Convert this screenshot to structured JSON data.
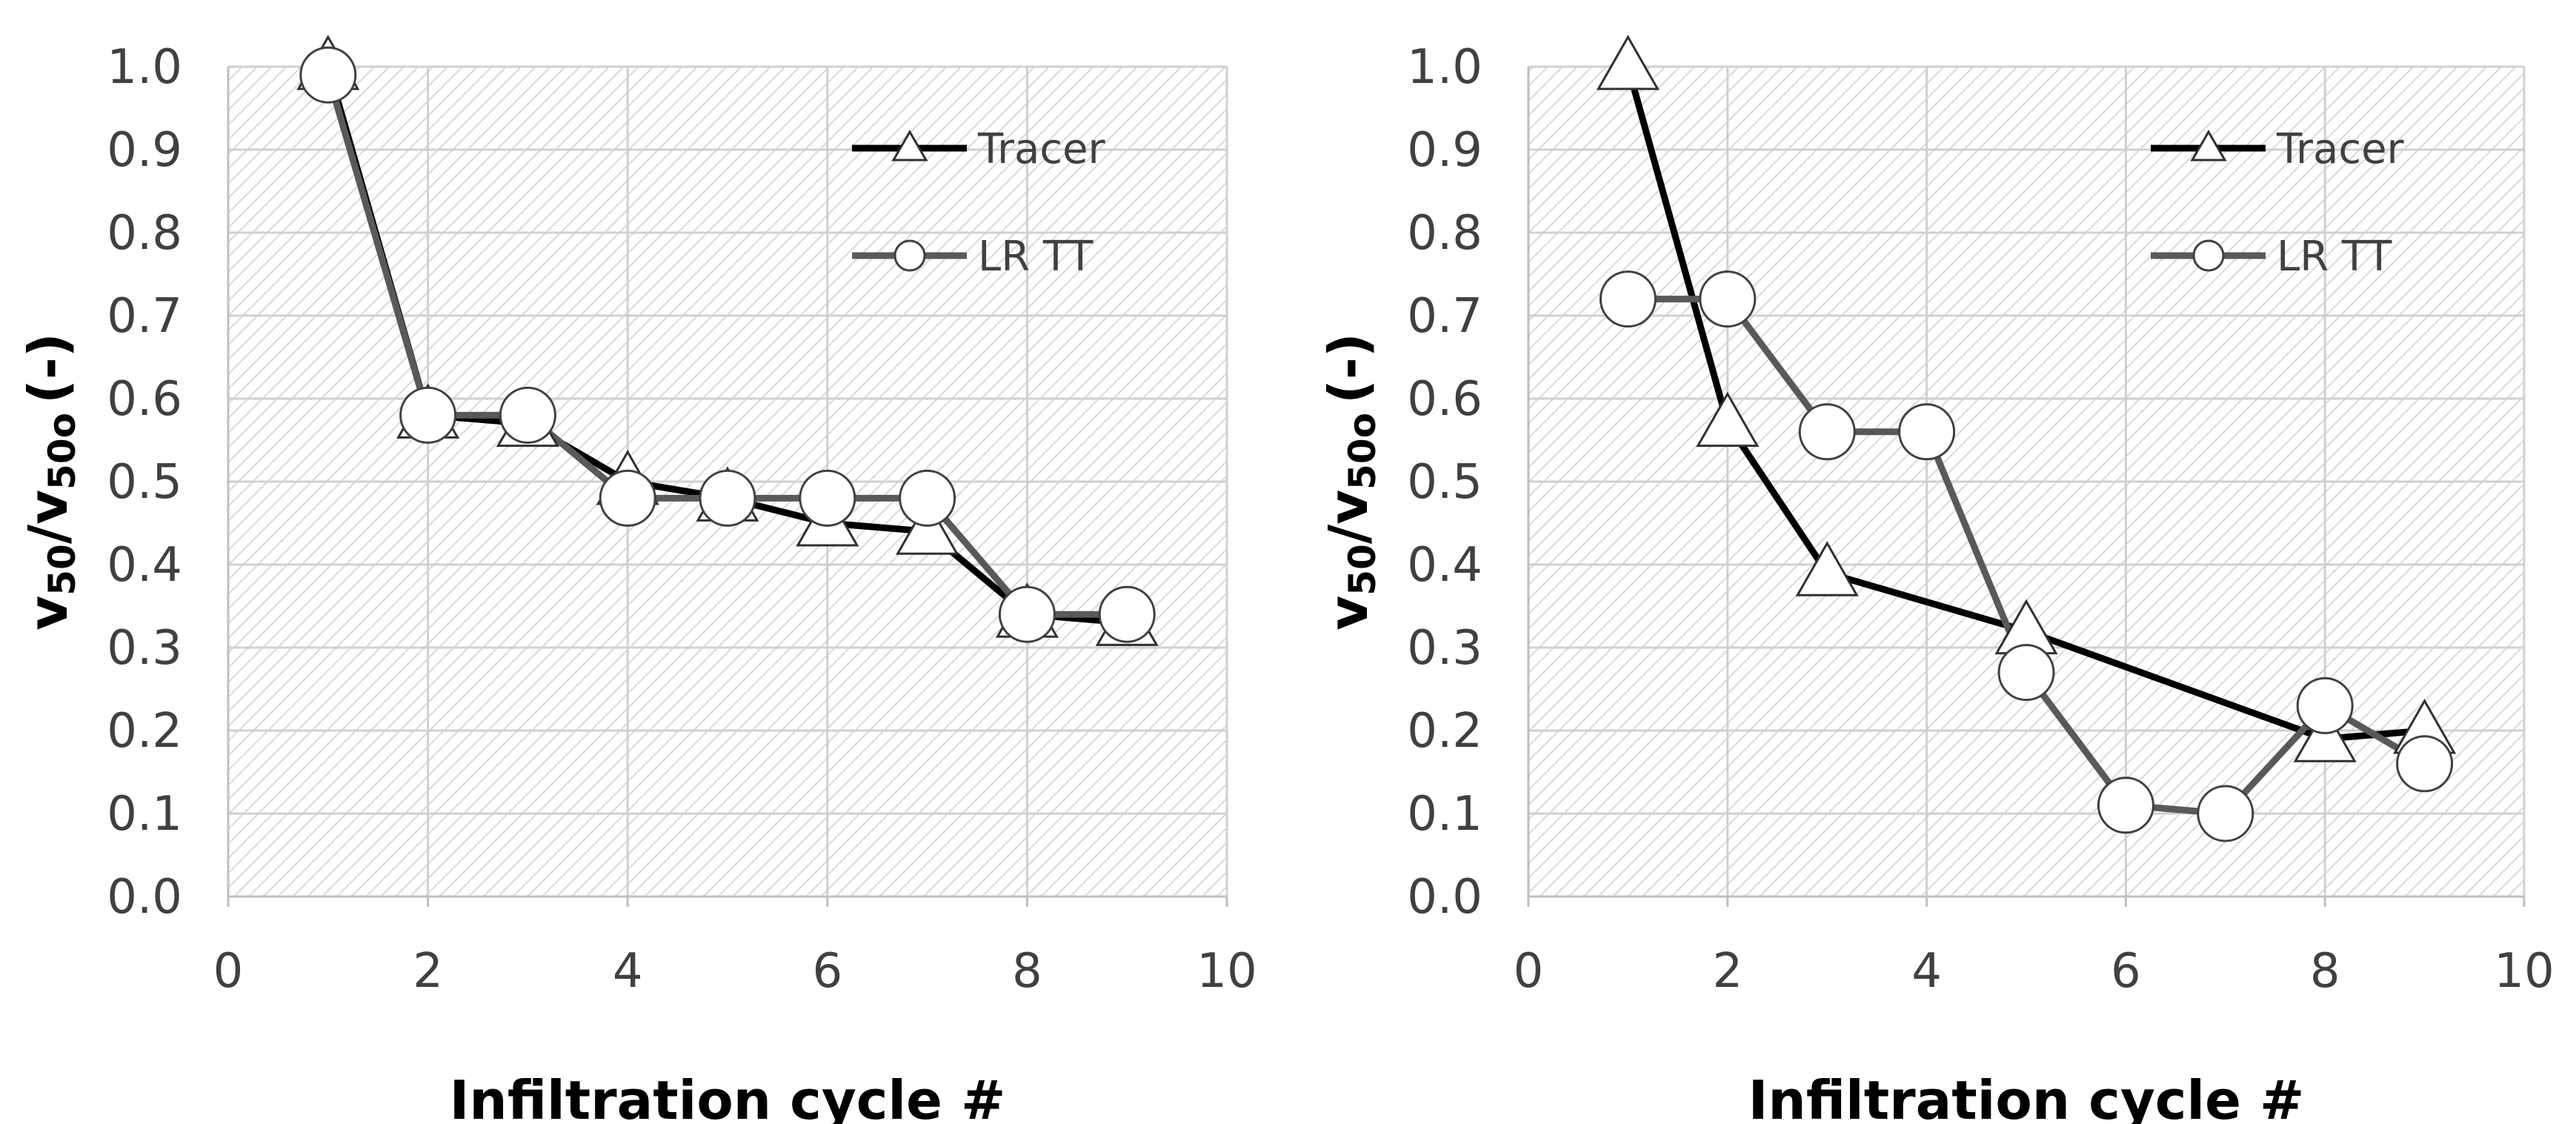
{
  "chart_data": [
    {
      "type": "line",
      "title": "",
      "xlabel": "Infiltration cycle #",
      "ylabel": {
        "v": "v",
        "sub1": "50",
        "slash": "/v",
        "sub2": "50o",
        "unit": "(-)"
      },
      "xlim": [
        0,
        10
      ],
      "ylim": [
        0,
        1
      ],
      "xticks": [
        "0",
        "2",
        "4",
        "6",
        "8",
        "10"
      ],
      "yticks": [
        "0.0",
        "0.1",
        "0.2",
        "0.3",
        "0.4",
        "0.5",
        "0.6",
        "0.7",
        "0.8",
        "0.9",
        "1.0"
      ],
      "legend_position": "top-right",
      "grid": true,
      "series": [
        {
          "name": "Tracer",
          "marker": "triangle",
          "color": "#000000",
          "x": [
            1,
            2,
            3,
            4,
            5,
            6,
            7,
            8,
            9
          ],
          "y": [
            1.0,
            0.58,
            0.57,
            0.5,
            0.48,
            0.45,
            0.44,
            0.34,
            0.33
          ]
        },
        {
          "name": "LR TT",
          "marker": "circle",
          "color": "#595959",
          "x": [
            1,
            2,
            3,
            4,
            5,
            6,
            7,
            8,
            9
          ],
          "y": [
            0.99,
            0.58,
            0.58,
            0.48,
            0.48,
            0.48,
            0.48,
            0.34,
            0.34
          ]
        }
      ]
    },
    {
      "type": "line",
      "title": "",
      "xlabel": "Infiltration cycle #",
      "ylabel": {
        "v": "v",
        "sub1": "50",
        "slash": "/v",
        "sub2": "50o",
        "unit": "(-)"
      },
      "xlim": [
        0,
        10
      ],
      "ylim": [
        0,
        1
      ],
      "xticks": [
        "0",
        "2",
        "4",
        "6",
        "8",
        "10"
      ],
      "yticks": [
        "0.0",
        "0.1",
        "0.2",
        "0.3",
        "0.4",
        "0.5",
        "0.6",
        "0.7",
        "0.8",
        "0.9",
        "1.0"
      ],
      "legend_position": "top-right",
      "grid": true,
      "series": [
        {
          "name": "Tracer",
          "marker": "triangle",
          "color": "#000000",
          "x": [
            1,
            2,
            3,
            5,
            8,
            9
          ],
          "y": [
            1.0,
            0.57,
            0.39,
            0.32,
            0.19,
            0.2
          ]
        },
        {
          "name": "LR TT",
          "marker": "circle",
          "color": "#595959",
          "x": [
            1,
            2,
            3,
            4,
            5,
            6,
            7,
            8,
            9
          ],
          "y": [
            0.72,
            0.72,
            0.56,
            0.56,
            0.27,
            0.11,
            0.1,
            0.23,
            0.16
          ]
        }
      ]
    }
  ]
}
